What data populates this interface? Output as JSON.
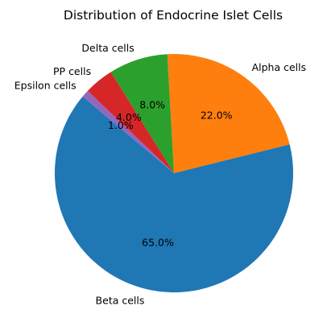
{
  "chart_data": {
    "type": "pie",
    "title": "Distribution of Endocrine Islet Cells",
    "start_angle_deg": 140,
    "direction": "counterclockwise",
    "slices": [
      {
        "label": "Beta cells",
        "value": 65.0,
        "pct_label": "65.0%",
        "color": "#1f77b4"
      },
      {
        "label": "Alpha cells",
        "value": 22.0,
        "pct_label": "22.0%",
        "color": "#ff7f0e"
      },
      {
        "label": "Delta cells",
        "value": 8.0,
        "pct_label": "8.0%",
        "color": "#2ca02c"
      },
      {
        "label": "PP cells",
        "value": 4.0,
        "pct_label": "4.0%",
        "color": "#d62728"
      },
      {
        "label": "Epsilon cells",
        "value": 1.0,
        "pct_label": "1.0%",
        "color": "#9467bd"
      }
    ]
  }
}
